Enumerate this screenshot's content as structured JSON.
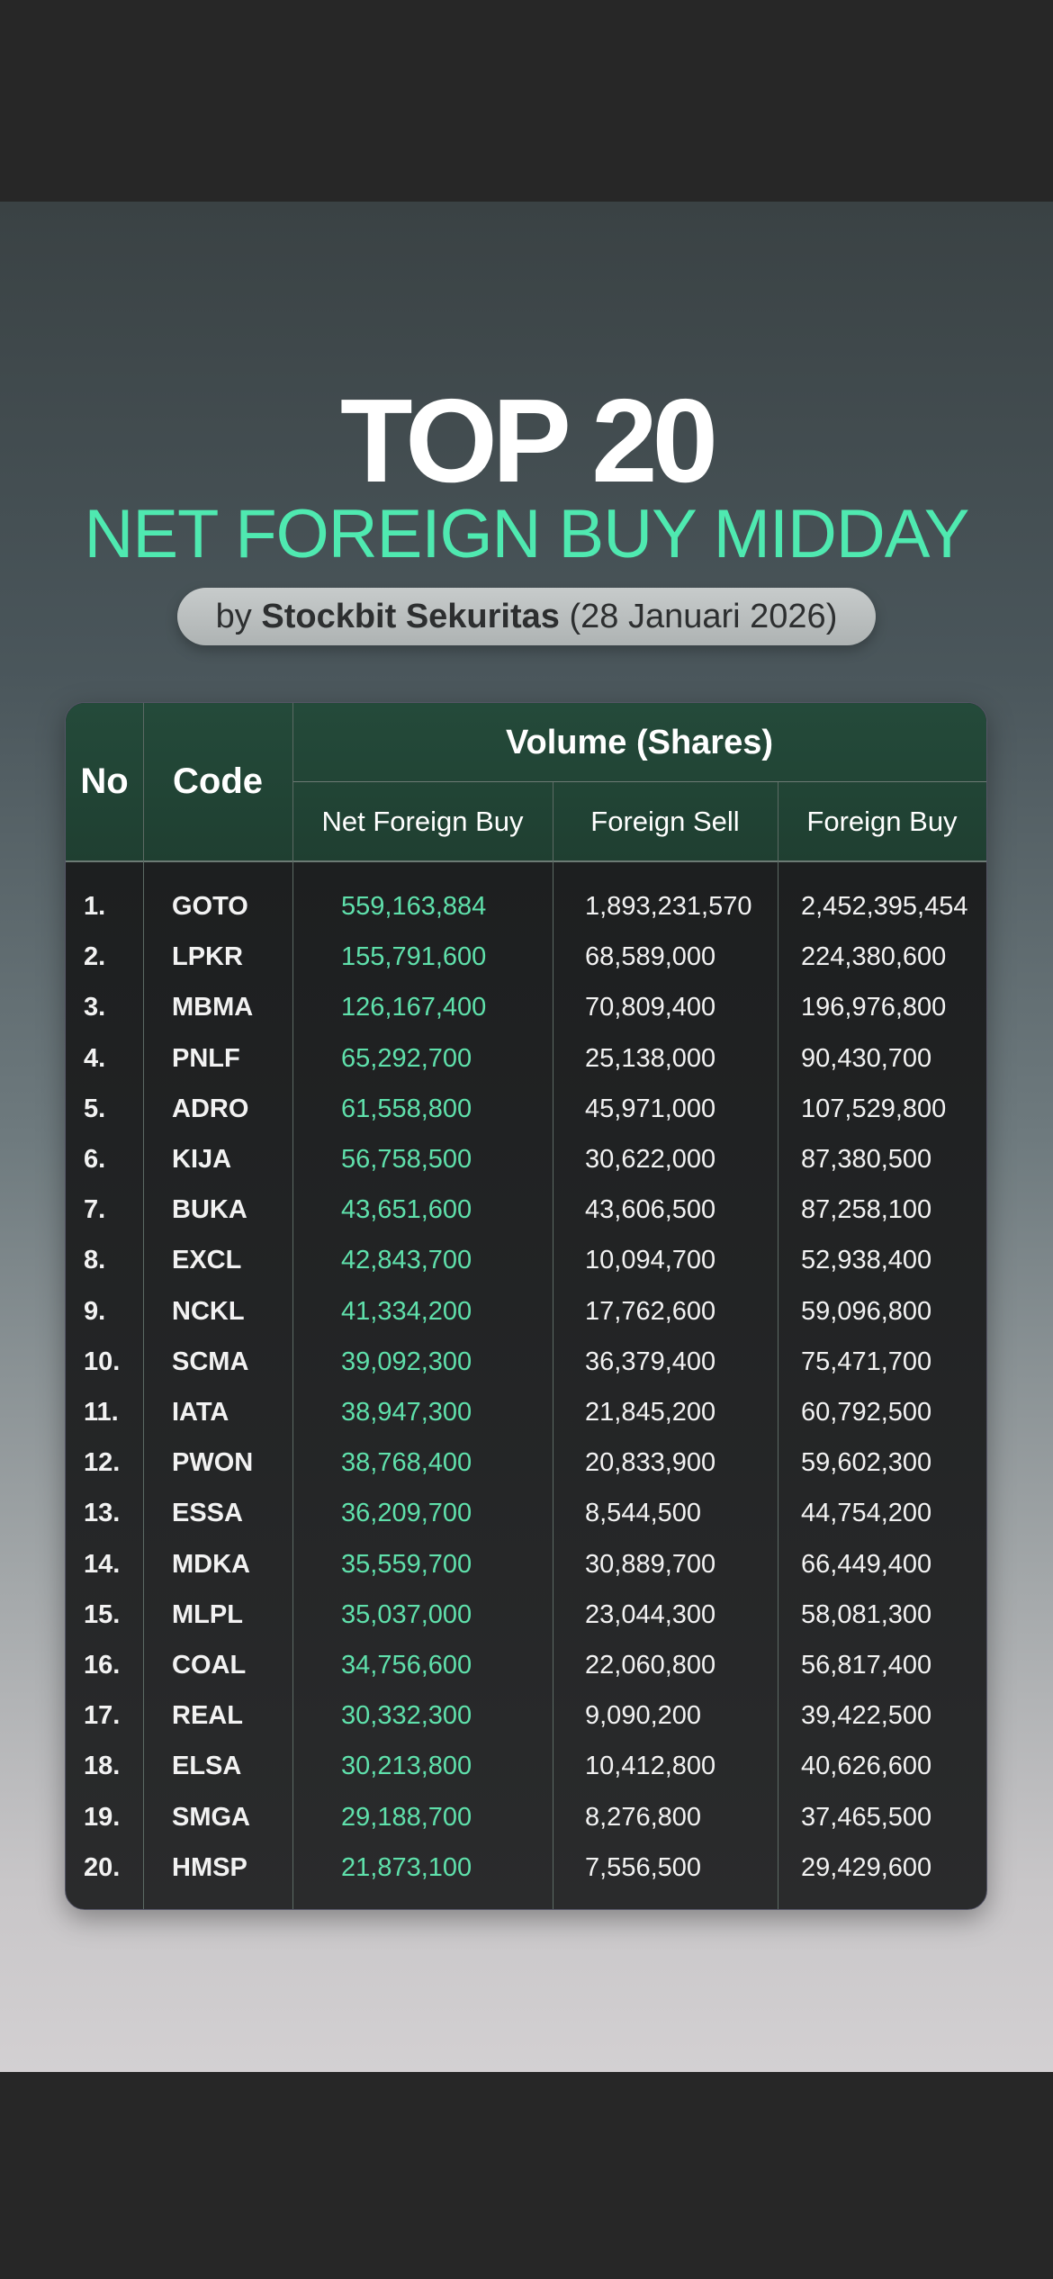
{
  "header": {
    "title": "TOP 20",
    "subtitle": "NET FOREIGN BUY MIDDAY",
    "byline_prefix": "by",
    "byline_source": "Stockbit Sekuritas",
    "byline_date": "(28 Januari 2026)"
  },
  "colors": {
    "accent": "#4fe9b0",
    "header_bg": "#244a3a",
    "table_bg": "#1b1d1e"
  },
  "table": {
    "col_no": "No",
    "col_code": "Code",
    "group_header": "Volume (Shares)",
    "col_net_foreign_buy": "Net Foreign Buy",
    "col_foreign_sell": "Foreign Sell",
    "col_foreign_buy": "Foreign Buy",
    "rows": [
      {
        "no": "1.",
        "code": "GOTO",
        "nfb": "559,163,884",
        "fs": "1,893,231,570",
        "fb": "2,452,395,454"
      },
      {
        "no": "2.",
        "code": "LPKR",
        "nfb": "155,791,600",
        "fs": "68,589,000",
        "fb": "224,380,600"
      },
      {
        "no": "3.",
        "code": "MBMA",
        "nfb": "126,167,400",
        "fs": "70,809,400",
        "fb": "196,976,800"
      },
      {
        "no": "4.",
        "code": "PNLF",
        "nfb": "65,292,700",
        "fs": "25,138,000",
        "fb": "90,430,700"
      },
      {
        "no": "5.",
        "code": "ADRO",
        "nfb": "61,558,800",
        "fs": "45,971,000",
        "fb": "107,529,800"
      },
      {
        "no": "6.",
        "code": "KIJA",
        "nfb": "56,758,500",
        "fs": "30,622,000",
        "fb": "87,380,500"
      },
      {
        "no": "7.",
        "code": "BUKA",
        "nfb": "43,651,600",
        "fs": "43,606,500",
        "fb": "87,258,100"
      },
      {
        "no": "8.",
        "code": "EXCL",
        "nfb": "42,843,700",
        "fs": "10,094,700",
        "fb": "52,938,400"
      },
      {
        "no": "9.",
        "code": "NCKL",
        "nfb": "41,334,200",
        "fs": "17,762,600",
        "fb": "59,096,800"
      },
      {
        "no": "10.",
        "code": "SCMA",
        "nfb": "39,092,300",
        "fs": "36,379,400",
        "fb": "75,471,700"
      },
      {
        "no": "11.",
        "code": "IATA",
        "nfb": "38,947,300",
        "fs": "21,845,200",
        "fb": "60,792,500"
      },
      {
        "no": "12.",
        "code": "PWON",
        "nfb": "38,768,400",
        "fs": "20,833,900",
        "fb": "59,602,300"
      },
      {
        "no": "13.",
        "code": "ESSA",
        "nfb": "36,209,700",
        "fs": "8,544,500",
        "fb": "44,754,200"
      },
      {
        "no": "14.",
        "code": "MDKA",
        "nfb": "35,559,700",
        "fs": "30,889,700",
        "fb": "66,449,400"
      },
      {
        "no": "15.",
        "code": "MLPL",
        "nfb": "35,037,000",
        "fs": "23,044,300",
        "fb": "58,081,300"
      },
      {
        "no": "16.",
        "code": "COAL",
        "nfb": "34,756,600",
        "fs": "22,060,800",
        "fb": "56,817,400"
      },
      {
        "no": "17.",
        "code": "REAL",
        "nfb": "30,332,300",
        "fs": "9,090,200",
        "fb": "39,422,500"
      },
      {
        "no": "18.",
        "code": "ELSA",
        "nfb": "30,213,800",
        "fs": "10,412,800",
        "fb": "40,626,600"
      },
      {
        "no": "19.",
        "code": "SMGA",
        "nfb": "29,188,700",
        "fs": "8,276,800",
        "fb": "37,465,500"
      },
      {
        "no": "20.",
        "code": "HMSP",
        "nfb": "21,873,100",
        "fs": "7,556,500",
        "fb": "29,429,600"
      }
    ]
  }
}
